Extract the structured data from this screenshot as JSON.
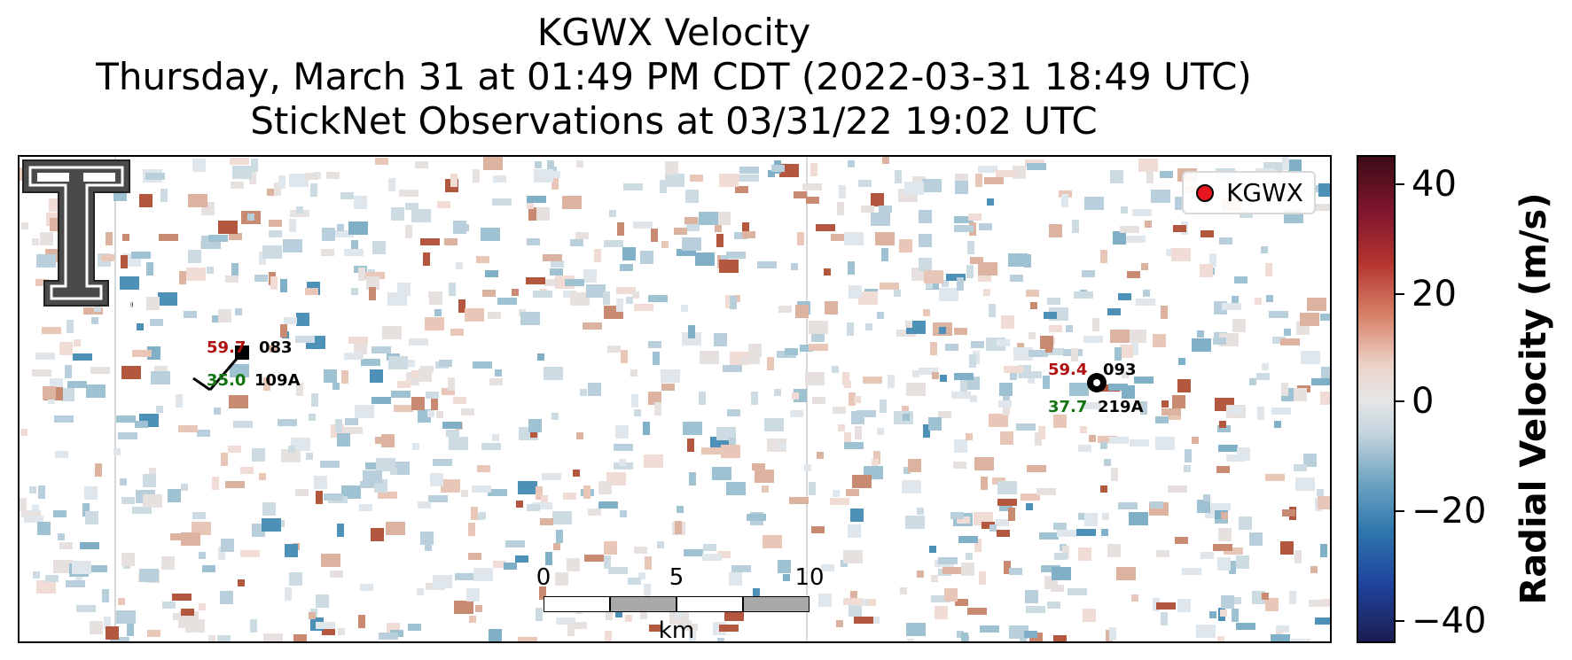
{
  "title": {
    "line1": "KGWX Velocity",
    "line2": "Thursday, March 31 at 01:49 PM CDT (2022-03-31 18:49 UTC)",
    "line3": "StickNet Observations at 03/31/22 19:02 UTC"
  },
  "legend": {
    "label": "KGWX",
    "marker_color": "#e8141e"
  },
  "logo": {
    "name": "Texas Tech double-T logo",
    "trademark": "®"
  },
  "scale_bar": {
    "ticks": [
      "0",
      "5",
      "10"
    ],
    "unit": "km"
  },
  "observations": [
    {
      "station": "109A",
      "temperature": "59.7",
      "dewpoint": "35.0",
      "wind_dir": "083"
    },
    {
      "station": "219A",
      "temperature": "59.4",
      "dewpoint": "37.7",
      "wind_dir": "093"
    }
  ],
  "colorbar": {
    "title": "Radial Velocity (m/s)",
    "ticks": [
      "40",
      "20",
      "0",
      "−20",
      "−40"
    ],
    "range": [
      -45,
      45
    ],
    "colors": {
      "strong_inbound": "#1b1d52",
      "inbound": "#2f78ae",
      "zero": "#e6e6e6",
      "outbound": "#b5352e",
      "strong_outbound": "#3d0c16"
    }
  }
}
